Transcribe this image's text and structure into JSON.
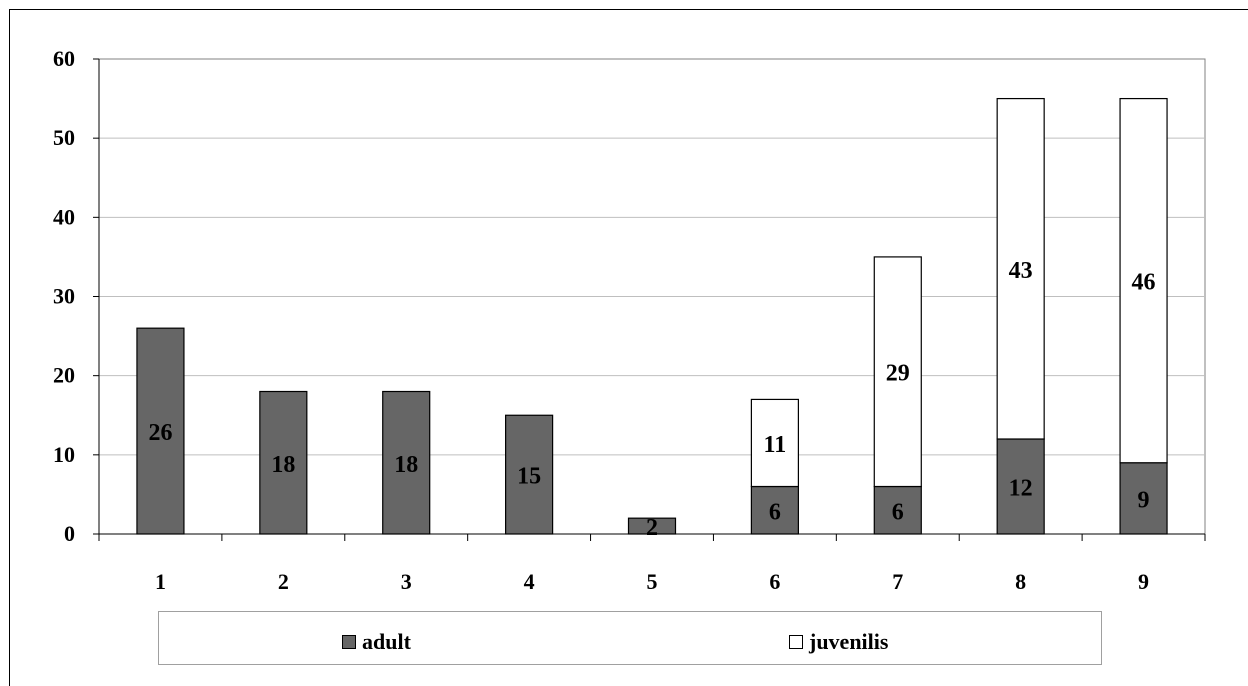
{
  "chart_data": {
    "type": "bar",
    "stacked": true,
    "categories": [
      "1",
      "2",
      "3",
      "4",
      "5",
      "6",
      "7",
      "8",
      "9"
    ],
    "series": [
      {
        "name": "adult",
        "values": [
          26,
          18,
          18,
          15,
          2,
          6,
          6,
          12,
          9
        ],
        "color": "#666666",
        "labels": [
          "26",
          "18",
          "18",
          "15",
          "2",
          "6",
          "6",
          "12",
          "9"
        ]
      },
      {
        "name": "juvenilis",
        "values": [
          0,
          0,
          0,
          0,
          0,
          11,
          29,
          43,
          46
        ],
        "color": "#ffffff",
        "labels": [
          "",
          "",
          "",
          "",
          "",
          "11",
          "29",
          "43",
          "46"
        ]
      }
    ],
    "ylim": [
      0,
      60
    ],
    "yticks": [
      "0",
      "10",
      "20",
      "30",
      "40",
      "50",
      "60"
    ],
    "grid": true,
    "legend_position": "bottom"
  },
  "legend": {
    "adult": "adult",
    "juvenilis": "juvenilis"
  }
}
